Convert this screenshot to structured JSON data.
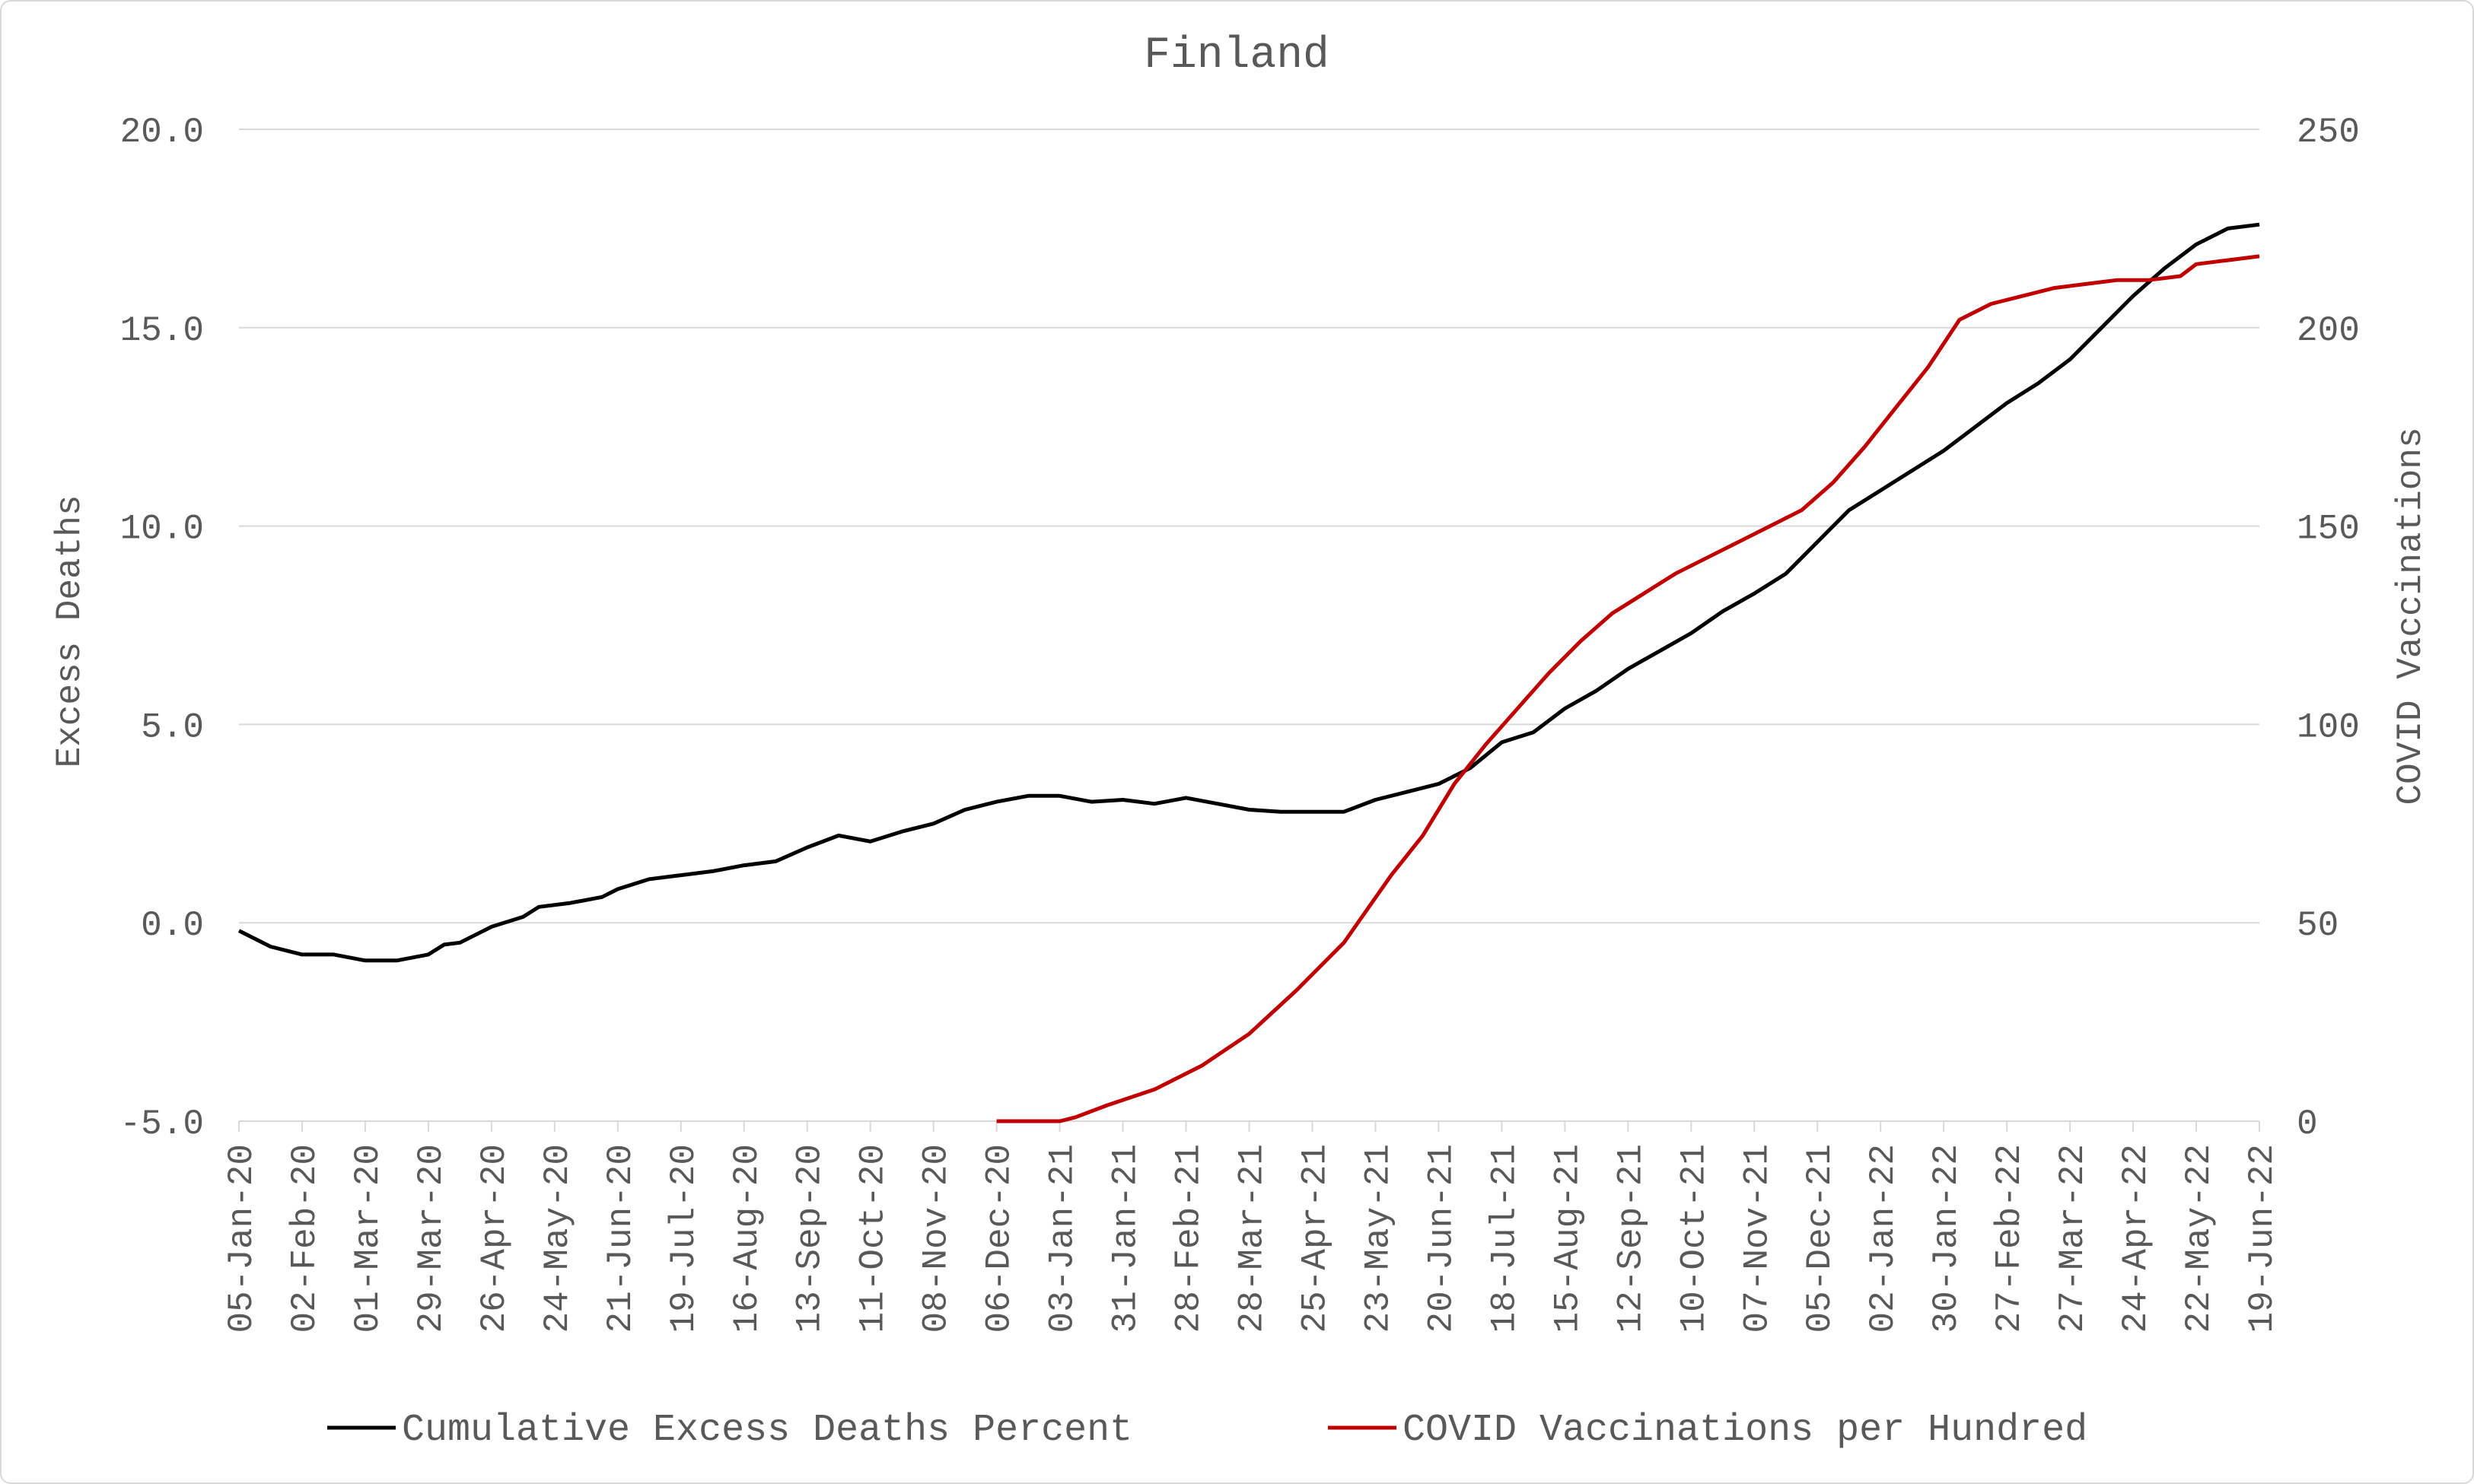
{
  "chart_data": {
    "type": "line",
    "title": "Finland",
    "ylabel_left": "Excess Deaths",
    "ylabel_right": "COVID Vaccinations",
    "ylim_left": [
      -5,
      20
    ],
    "ylim_right": [
      0,
      250
    ],
    "yticks_left": [
      "20.0",
      "15.0",
      "10.0",
      "5.0",
      "0.0",
      "-5.0"
    ],
    "yticks_right": [
      "250",
      "200",
      "150",
      "100",
      "50",
      "0"
    ],
    "x_start": "2020-01-05",
    "x_end": "2022-06-19",
    "x_tick_step_weeks": 4,
    "x_ticks": [
      "05-Jan-20",
      "02-Feb-20",
      "01-Mar-20",
      "29-Mar-20",
      "26-Apr-20",
      "24-May-20",
      "21-Jun-20",
      "19-Jul-20",
      "16-Aug-20",
      "13-Sep-20",
      "11-Oct-20",
      "08-Nov-20",
      "06-Dec-20",
      "03-Jan-21",
      "31-Jan-21",
      "28-Feb-21",
      "28-Mar-21",
      "25-Apr-21",
      "23-May-21",
      "20-Jun-21",
      "18-Jul-21",
      "15-Aug-21",
      "12-Sep-21",
      "10-Oct-21",
      "07-Nov-21",
      "05-Dec-21",
      "02-Jan-22",
      "30-Jan-22",
      "27-Feb-22",
      "27-Mar-22",
      "24-Apr-22",
      "22-May-22",
      "19-Jun-22"
    ],
    "grid": true,
    "legend_position": "bottom",
    "series": [
      {
        "name": "Cumulative Excess Deaths Percent",
        "axis": "left",
        "color": "#000000",
        "points": [
          [
            "2020-01-05",
            -0.2
          ],
          [
            "2020-01-19",
            -0.6
          ],
          [
            "2020-02-02",
            -0.8
          ],
          [
            "2020-02-16",
            -0.8
          ],
          [
            "2020-03-01",
            -0.95
          ],
          [
            "2020-03-15",
            -0.95
          ],
          [
            "2020-03-29",
            -0.8
          ],
          [
            "2020-04-05",
            -0.55
          ],
          [
            "2020-04-12",
            -0.5
          ],
          [
            "2020-04-26",
            -0.1
          ],
          [
            "2020-05-10",
            0.15
          ],
          [
            "2020-05-17",
            0.4
          ],
          [
            "2020-05-31",
            0.5
          ],
          [
            "2020-06-14",
            0.65
          ],
          [
            "2020-06-21",
            0.85
          ],
          [
            "2020-07-05",
            1.1
          ],
          [
            "2020-07-19",
            1.2
          ],
          [
            "2020-08-02",
            1.3
          ],
          [
            "2020-08-16",
            1.45
          ],
          [
            "2020-08-30",
            1.55
          ],
          [
            "2020-09-13",
            1.9
          ],
          [
            "2020-09-27",
            2.2
          ],
          [
            "2020-10-11",
            2.05
          ],
          [
            "2020-10-25",
            2.3
          ],
          [
            "2020-11-08",
            2.5
          ],
          [
            "2020-11-22",
            2.85
          ],
          [
            "2020-12-06",
            3.05
          ],
          [
            "2020-12-20",
            3.2
          ],
          [
            "2021-01-03",
            3.2
          ],
          [
            "2021-01-17",
            3.05
          ],
          [
            "2021-01-31",
            3.1
          ],
          [
            "2021-02-14",
            3.0
          ],
          [
            "2021-02-28",
            3.15
          ],
          [
            "2021-03-14",
            3.0
          ],
          [
            "2021-03-28",
            2.85
          ],
          [
            "2021-04-11",
            2.8
          ],
          [
            "2021-04-25",
            2.8
          ],
          [
            "2021-05-09",
            2.8
          ],
          [
            "2021-05-23",
            3.1
          ],
          [
            "2021-06-06",
            3.3
          ],
          [
            "2021-06-20",
            3.5
          ],
          [
            "2021-07-04",
            3.9
          ],
          [
            "2021-07-18",
            4.55
          ],
          [
            "2021-08-01",
            4.8
          ],
          [
            "2021-08-15",
            5.4
          ],
          [
            "2021-08-29",
            5.85
          ],
          [
            "2021-09-12",
            6.4
          ],
          [
            "2021-09-26",
            6.85
          ],
          [
            "2021-10-10",
            7.3
          ],
          [
            "2021-10-24",
            7.85
          ],
          [
            "2021-11-07",
            8.3
          ],
          [
            "2021-11-21",
            8.8
          ],
          [
            "2021-12-05",
            9.6
          ],
          [
            "2021-12-19",
            10.4
          ],
          [
            "2022-01-02",
            10.9
          ],
          [
            "2022-01-16",
            11.4
          ],
          [
            "2022-01-30",
            11.9
          ],
          [
            "2022-02-13",
            12.5
          ],
          [
            "2022-02-27",
            13.1
          ],
          [
            "2022-03-13",
            13.6
          ],
          [
            "2022-03-27",
            14.2
          ],
          [
            "2022-04-10",
            15.0
          ],
          [
            "2022-04-24",
            15.8
          ],
          [
            "2022-05-08",
            16.5
          ],
          [
            "2022-05-22",
            17.1
          ],
          [
            "2022-06-05",
            17.5
          ],
          [
            "2022-06-19",
            17.6
          ]
        ]
      },
      {
        "name": "COVID Vaccinations per Hundred",
        "axis": "right",
        "color": "#c00000",
        "points": [
          [
            "2020-12-06",
            0
          ],
          [
            "2021-01-03",
            0
          ],
          [
            "2021-01-10",
            1
          ],
          [
            "2021-01-24",
            4
          ],
          [
            "2021-02-14",
            8
          ],
          [
            "2021-03-07",
            14
          ],
          [
            "2021-03-28",
            22
          ],
          [
            "2021-04-18",
            33
          ],
          [
            "2021-05-09",
            45
          ],
          [
            "2021-05-30",
            62
          ],
          [
            "2021-06-13",
            72
          ],
          [
            "2021-06-27",
            85
          ],
          [
            "2021-07-11",
            95
          ],
          [
            "2021-07-25",
            104
          ],
          [
            "2021-08-08",
            113
          ],
          [
            "2021-08-22",
            121
          ],
          [
            "2021-09-05",
            128
          ],
          [
            "2021-09-19",
            133
          ],
          [
            "2021-10-03",
            138
          ],
          [
            "2021-10-17",
            142
          ],
          [
            "2021-10-31",
            146
          ],
          [
            "2021-11-14",
            150
          ],
          [
            "2021-11-28",
            154
          ],
          [
            "2021-12-12",
            161
          ],
          [
            "2021-12-26",
            170
          ],
          [
            "2022-01-09",
            180
          ],
          [
            "2022-01-23",
            190
          ],
          [
            "2022-02-06",
            202
          ],
          [
            "2022-02-20",
            206
          ],
          [
            "2022-03-06",
            208
          ],
          [
            "2022-03-20",
            210
          ],
          [
            "2022-04-03",
            211
          ],
          [
            "2022-04-17",
            212
          ],
          [
            "2022-05-01",
            212
          ],
          [
            "2022-05-15",
            213
          ],
          [
            "2022-05-22",
            216
          ],
          [
            "2022-06-05",
            217
          ],
          [
            "2022-06-19",
            218
          ]
        ]
      }
    ]
  }
}
